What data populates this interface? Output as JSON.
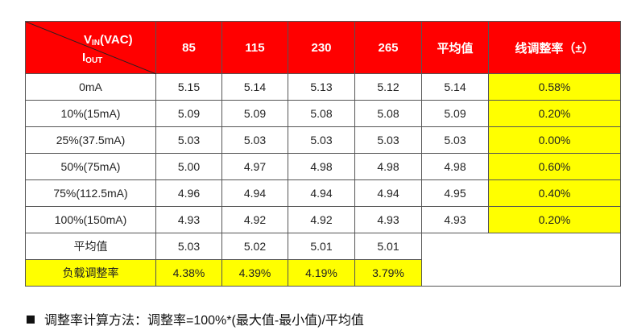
{
  "header": {
    "vin_label": "V",
    "vin_sub": "IN",
    "vin_unit": "(VAC)",
    "iout_label": "I",
    "iout_sub": "OUT",
    "columns": [
      "85",
      "115",
      "230",
      "265",
      "平均值",
      "线调整率（±）"
    ]
  },
  "rows": [
    {
      "label": "0mA",
      "values": [
        "5.15",
        "5.14",
        "5.13",
        "5.12",
        "5.14",
        "0.58%"
      ]
    },
    {
      "label": "10%(15mA)",
      "values": [
        "5.09",
        "5.09",
        "5.08",
        "5.08",
        "5.09",
        "0.20%"
      ]
    },
    {
      "label": "25%(37.5mA)",
      "values": [
        "5.03",
        "5.03",
        "5.03",
        "5.03",
        "5.03",
        "0.00%"
      ]
    },
    {
      "label": "50%(75mA)",
      "values": [
        "5.00",
        "4.97",
        "4.98",
        "4.98",
        "4.98",
        "0.60%"
      ]
    },
    {
      "label": "75%(112.5mA)",
      "values": [
        "4.96",
        "4.94",
        "4.94",
        "4.94",
        "4.95",
        "0.40%"
      ]
    },
    {
      "label": "100%(150mA)",
      "values": [
        "4.93",
        "4.92",
        "4.92",
        "4.93",
        "4.93",
        "0.20%"
      ]
    }
  ],
  "average_row": {
    "label": "平均值",
    "values": [
      "5.03",
      "5.02",
      "5.01",
      "5.01"
    ]
  },
  "load_reg_row": {
    "label": "负载调整率",
    "values": [
      "4.38%",
      "4.39%",
      "4.19%",
      "3.79%"
    ]
  },
  "note": "调整率计算方法：调整率=100%*(最大值-最小值)/平均值",
  "colors": {
    "header_bg": "#ff0000",
    "highlight": "#ffff00"
  }
}
